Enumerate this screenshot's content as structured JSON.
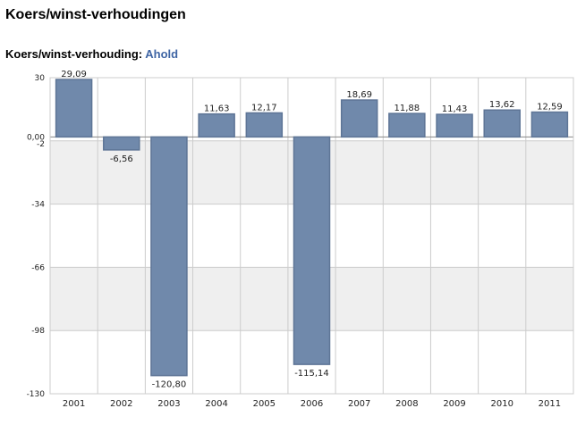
{
  "page": {
    "title": "Koers/winst-verhoudingen",
    "chart_heading_label": "Koers/winst-verhouding:",
    "chart_heading_company": "Ahold"
  },
  "colors": {
    "bar_fill": "#7089ab",
    "bar_stroke": "#5e7596",
    "band_shade": "#efefef",
    "grid": "#cccccc",
    "company_link": "#3f65a4"
  },
  "chart_data": {
    "type": "bar",
    "title": "",
    "xlabel": "",
    "ylabel": "",
    "categories": [
      "2001",
      "2002",
      "2003",
      "2004",
      "2005",
      "2006",
      "2007",
      "2008",
      "2009",
      "2010",
      "2011"
    ],
    "values": [
      29.09,
      -6.56,
      -120.8,
      11.63,
      12.17,
      -115.14,
      18.69,
      11.88,
      11.43,
      13.62,
      12.59
    ],
    "value_labels": [
      "29,09",
      "-6,56",
      "-120,80",
      "11,63",
      "12,17",
      "-115,14",
      "18,69",
      "11,88",
      "11,43",
      "13,62",
      "12,59"
    ],
    "ylim": [
      -130,
      30
    ],
    "y_ticks": [
      30,
      0,
      -2,
      -34,
      -66,
      -98,
      -130
    ],
    "y_tick_labels": [
      "30",
      "0,00",
      "-2",
      "-34",
      "-66",
      "-98",
      "-130"
    ],
    "shaded_bands": [
      [
        -34,
        -2
      ],
      [
        -98,
        -66
      ]
    ],
    "grid": true,
    "legend": "none"
  }
}
